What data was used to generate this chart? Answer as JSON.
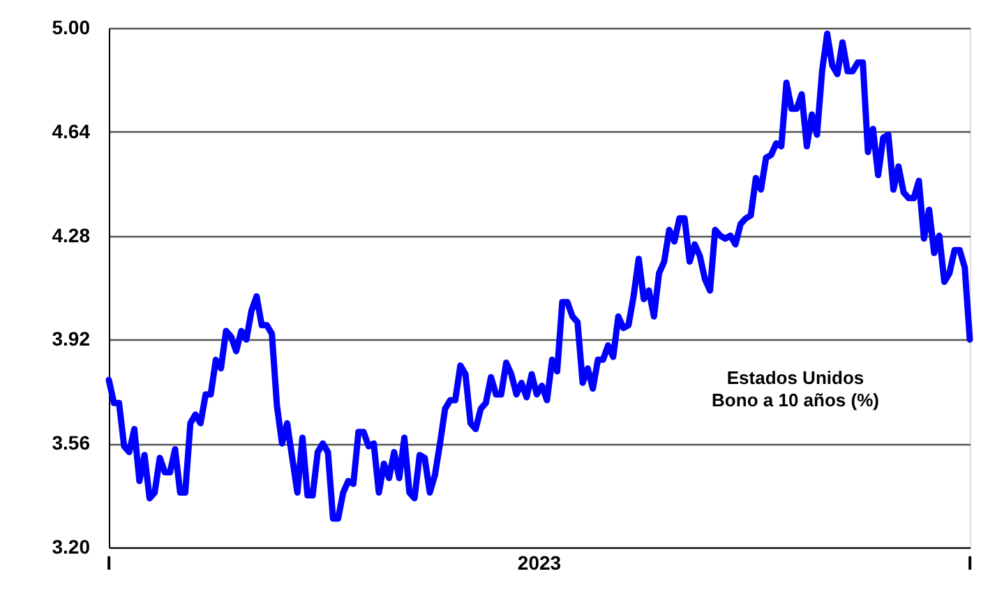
{
  "chart_data": {
    "type": "line",
    "annotations": [
      "Estados Unidos\nBono a 10 años (%)",
      "I",
      "2023",
      "I"
    ],
    "categories": [
      null,
      null,
      null,
      null,
      null,
      null,
      null,
      null,
      null,
      null,
      null,
      null,
      null,
      null,
      null,
      null,
      null,
      null,
      null,
      null,
      null,
      null,
      null,
      null,
      null,
      null,
      null,
      null,
      null,
      null,
      null,
      null,
      null,
      null,
      null,
      null,
      null,
      null,
      null,
      null,
      null,
      null,
      null,
      null,
      null,
      null,
      null,
      null,
      null,
      null,
      null,
      null,
      null,
      null,
      null,
      null,
      null,
      null,
      null,
      null,
      null,
      null,
      null,
      null,
      null,
      null,
      null,
      null,
      null,
      null,
      null,
      null,
      null,
      null,
      null,
      null,
      null,
      null,
      null,
      null,
      null,
      null,
      null,
      null,
      null,
      null,
      null,
      null,
      null,
      null,
      null,
      null,
      null,
      null,
      null,
      null,
      null,
      null,
      null,
      null,
      null,
      null,
      null,
      null,
      null,
      null,
      null,
      null,
      null,
      null,
      null,
      null,
      null,
      null,
      null,
      null,
      null,
      null,
      null,
      null,
      null,
      null,
      null,
      null,
      null,
      null,
      null,
      null,
      null,
      null,
      null,
      null,
      null,
      null,
      null,
      null,
      null,
      null,
      null,
      null,
      null,
      null,
      null,
      null,
      null,
      null,
      null,
      null,
      null,
      null,
      null,
      null,
      null,
      null,
      null,
      null,
      null,
      null,
      null,
      null,
      null,
      null,
      null,
      null,
      null,
      null,
      null,
      null,
      null,
      null
    ],
    "series": [
      {
        "color": "#0000ff",
        "values": [
          3.78,
          3.7,
          3.7,
          3.55,
          3.53,
          3.61,
          3.43,
          3.52,
          3.37,
          3.39,
          3.51,
          3.46,
          3.46,
          3.54,
          3.39,
          3.39,
          3.63,
          3.66,
          3.63,
          3.73,
          3.73,
          3.85,
          3.82,
          3.95,
          3.93,
          3.88,
          3.95,
          3.92,
          4.02,
          4.07,
          3.97,
          3.97,
          3.94,
          3.69,
          3.56,
          3.63,
          3.51,
          3.39,
          3.58,
          3.38,
          3.38,
          3.53,
          3.56,
          3.53,
          3.3,
          3.3,
          3.39,
          3.43,
          3.42,
          3.6,
          3.6,
          3.55,
          3.56,
          3.39,
          3.49,
          3.44,
          3.53,
          3.44,
          3.58,
          3.39,
          3.37,
          3.52,
          3.51,
          3.39,
          3.45,
          3.56,
          3.68,
          3.71,
          3.71,
          3.83,
          3.8,
          3.63,
          3.61,
          3.68,
          3.7,
          3.79,
          3.73,
          3.73,
          3.84,
          3.8,
          3.73,
          3.77,
          3.72,
          3.8,
          3.73,
          3.76,
          3.71,
          3.85,
          3.81,
          4.05,
          4.05,
          4.0,
          3.98,
          3.77,
          3.82,
          3.75,
          3.85,
          3.85,
          3.9,
          3.86,
          4.0,
          3.96,
          3.97,
          4.07,
          4.2,
          4.06,
          4.09,
          4.0,
          4.15,
          4.19,
          4.3,
          4.26,
          4.34,
          4.34,
          4.19,
          4.25,
          4.21,
          4.13,
          4.09,
          4.3,
          4.28,
          4.27,
          4.28,
          4.25,
          4.32,
          4.34,
          4.35,
          4.48,
          4.44,
          4.55,
          4.56,
          4.6,
          4.59,
          4.81,
          4.72,
          4.72,
          4.77,
          4.59,
          4.7,
          4.63,
          4.85,
          4.98,
          4.87,
          4.84,
          4.95,
          4.85,
          4.85,
          4.88,
          4.88,
          4.57,
          4.65,
          4.49,
          4.62,
          4.63,
          4.44,
          4.52,
          4.43,
          4.41,
          4.41,
          4.47,
          4.27,
          4.37,
          4.22,
          4.28,
          4.12,
          4.15,
          4.23,
          4.23,
          4.17,
          3.92
        ]
      }
    ],
    "ylim": [
      3.2,
      5.0
    ],
    "yticks": [
      {
        "value": 3.2,
        "label": "3.20"
      },
      {
        "value": 3.56,
        "label": "3.56"
      },
      {
        "value": 3.92,
        "label": "3.92"
      },
      {
        "value": 4.28,
        "label": "4.28"
      },
      {
        "value": 4.64,
        "label": "4.64"
      },
      {
        "value": 5.0,
        "label": "5.00"
      }
    ],
    "grid": "y",
    "line_style": "solid",
    "marker": "none"
  }
}
